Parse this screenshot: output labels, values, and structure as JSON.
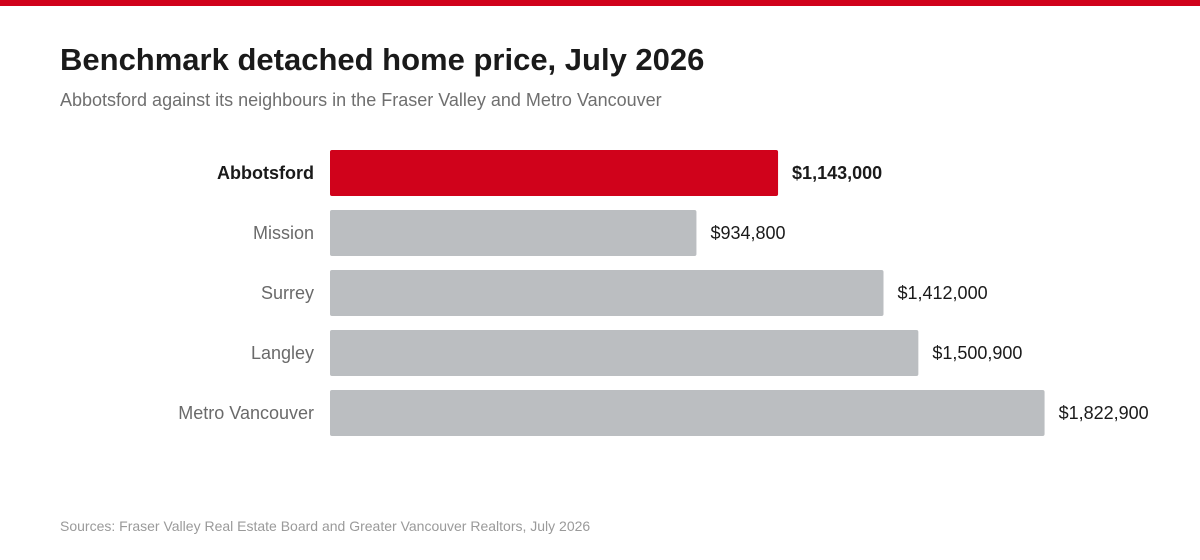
{
  "chart_data": {
    "type": "bar",
    "orientation": "horizontal",
    "title": "Benchmark detached home price, July 2026",
    "subtitle": "Abbotsford against its neighbours in the Fraser Valley and Metro Vancouver",
    "categories": [
      "Abbotsford",
      "Mission",
      "Surrey",
      "Langley",
      "Metro Vancouver"
    ],
    "values": [
      1143000,
      934800,
      1412000,
      1500900,
      1822900
    ],
    "value_labels": [
      "$1,143,000",
      "$934,800",
      "$1,412,000",
      "$1,500,900",
      "$1,822,900"
    ],
    "highlight": "Abbotsford",
    "xlim": [
      0,
      2500000
    ],
    "grid": false,
    "legend": "none",
    "source": "Sources: Fraser Valley Real Estate Board and Greater Vancouver Realtors, July 2026"
  },
  "colors": {
    "accent": "#d0021b",
    "bar": "#bbbec1",
    "top_rule": "#d0021b"
  }
}
